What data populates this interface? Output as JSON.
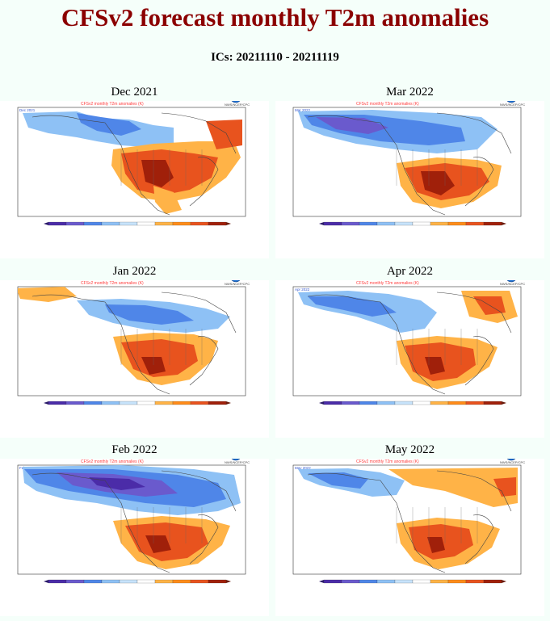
{
  "title": "CFSv2 forecast monthly T2m anomalies",
  "subtitle": "ICs: 20211110 - 20211119",
  "panels": [
    {
      "label": "Dec 2021",
      "code": "Dec 2021"
    },
    {
      "label": "Mar 2022",
      "code": "Mar 2022"
    },
    {
      "label": "Jan 2022",
      "code": "Jan 2022"
    },
    {
      "label": "Apr 2022",
      "code": "Apr 2022"
    },
    {
      "label": "Feb 2022",
      "code": "Feb 2022"
    },
    {
      "label": "May 2022",
      "code": "May 2022"
    }
  ],
  "inner_title": "CFSv2 monthly T2m anomalies (K)",
  "logo_text": "NWS/NCEP/CPC",
  "colors": {
    "title": "#8b0000",
    "deep_purple": "#4b2ca8",
    "purple": "#6a5acd",
    "blue": "#4f86e8",
    "light_blue": "#8ec1f5",
    "pale_blue": "#c7e3fb",
    "white": "#ffffff",
    "yellow_orange": "#ffb347",
    "orange": "#ff8c1a",
    "red_orange": "#e8531e",
    "dark_red": "#a0200a"
  }
}
